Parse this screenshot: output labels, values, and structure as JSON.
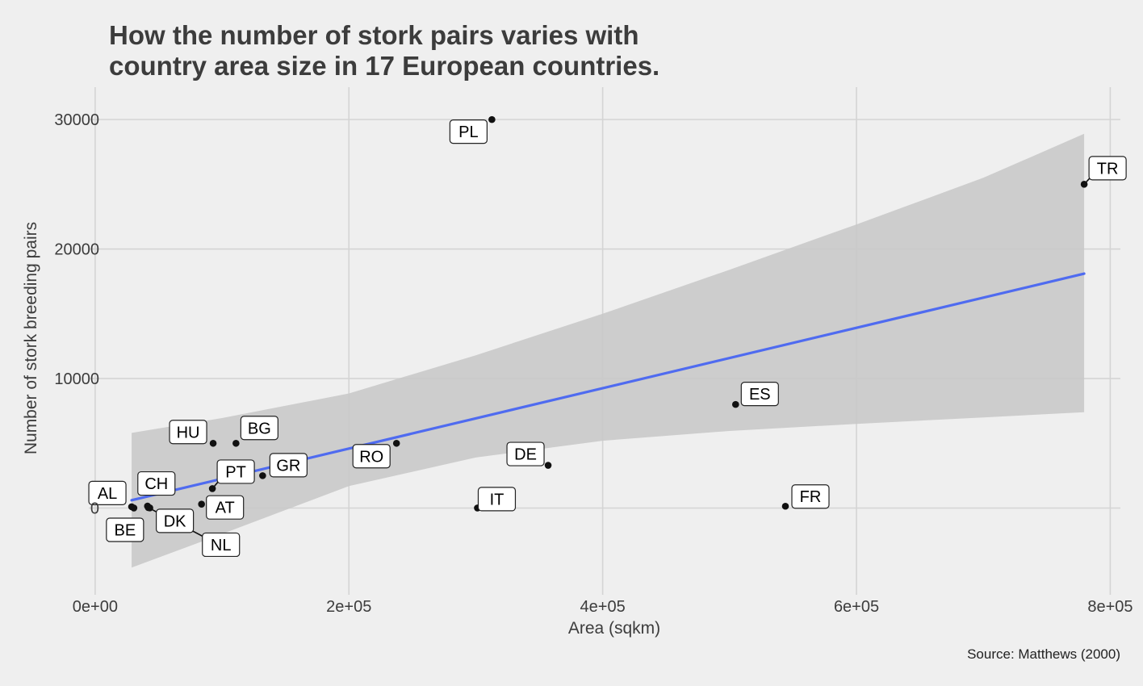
{
  "chart_data": {
    "type": "scatter",
    "title_lines": [
      "How the number of stork pairs varies with",
      "country area size in 17 European countries."
    ],
    "xlabel": "Area (sqkm)",
    "ylabel": "Number of stork breeding pairs",
    "caption": "Source: Matthews (2000)",
    "xlim": [
      -5000,
      808000
    ],
    "ylim": [
      -6700,
      32500
    ],
    "x_ticks": [
      0,
      200000,
      400000,
      600000,
      800000
    ],
    "x_tick_labels": [
      "0e+00",
      "2e+05",
      "4e+05",
      "6e+05",
      "8e+05"
    ],
    "y_ticks": [
      0,
      10000,
      20000,
      30000
    ],
    "y_tick_labels": [
      "0",
      "10000",
      "20000",
      "30000"
    ],
    "grid": true,
    "legend": "none",
    "colors": {
      "background": "#efefef",
      "grid": "#d4d4d4",
      "point": "#111111",
      "fit_line": "#4f6bf0",
      "ribbon": "#c9c9c9"
    },
    "points": [
      {
        "label": "AL",
        "x": 28750,
        "y": 100
      },
      {
        "label": "AT",
        "x": 83860,
        "y": 300
      },
      {
        "label": "BE",
        "x": 30520,
        "y": 1
      },
      {
        "label": "BG",
        "x": 111000,
        "y": 5000
      },
      {
        "label": "CH",
        "x": 41290,
        "y": 150
      },
      {
        "label": "DK",
        "x": 43100,
        "y": 9
      },
      {
        "label": "DE",
        "x": 357000,
        "y": 3300
      },
      {
        "label": "ES",
        "x": 504750,
        "y": 8000
      },
      {
        "label": "FR",
        "x": 544000,
        "y": 140
      },
      {
        "label": "GR",
        "x": 132000,
        "y": 2500
      },
      {
        "label": "HU",
        "x": 93000,
        "y": 5000
      },
      {
        "label": "IT",
        "x": 301280,
        "y": 5
      },
      {
        "label": "NL",
        "x": 41900,
        "y": 34
      },
      {
        "label": "PL",
        "x": 312680,
        "y": 30000
      },
      {
        "label": "PT",
        "x": 92390,
        "y": 1500
      },
      {
        "label": "RO",
        "x": 237500,
        "y": 5000
      },
      {
        "label": "TR",
        "x": 779450,
        "y": 25000
      }
    ],
    "fit_line": {
      "x": [
        28750,
        779450
      ],
      "y": [
        600,
        18100
      ]
    },
    "confidence_band": {
      "x": [
        28750,
        100000,
        200000,
        300000,
        400000,
        500000,
        600000,
        700000,
        779450
      ],
      "upper": [
        5800,
        6950,
        8850,
        11800,
        15000,
        18400,
        21900,
        25500,
        28900
      ],
      "lower": [
        -4600,
        -2000,
        1700,
        3900,
        5200,
        5950,
        6500,
        7000,
        7400
      ]
    }
  }
}
